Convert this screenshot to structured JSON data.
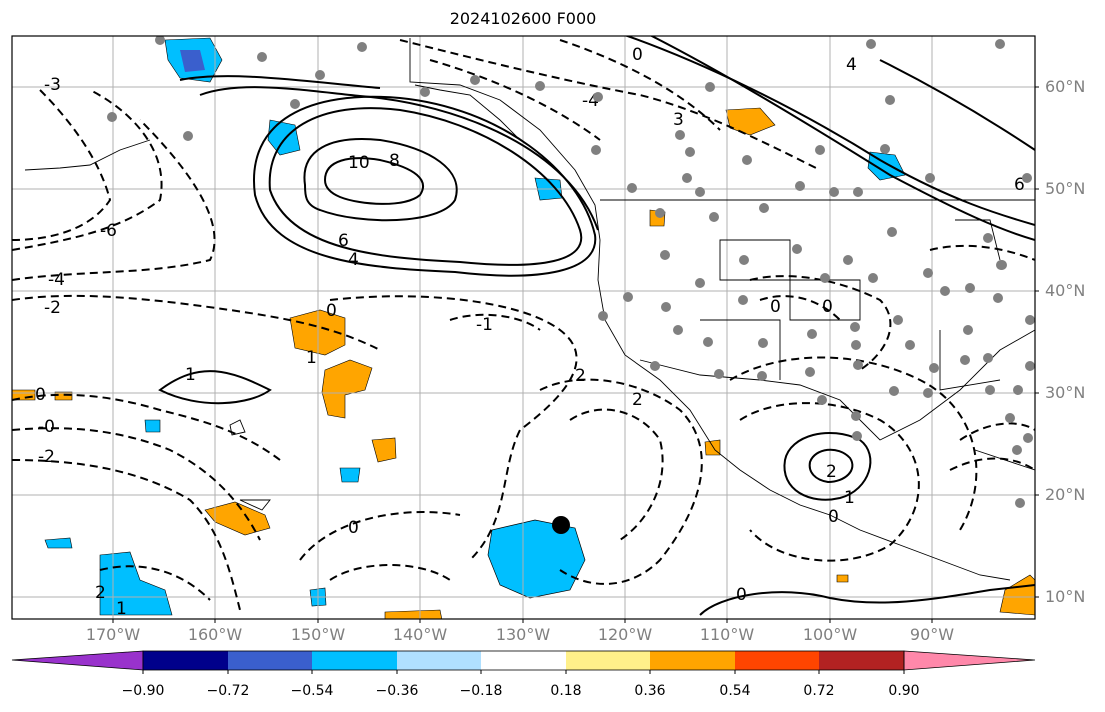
{
  "title": "2024102600 F000",
  "lat_labels": [
    "60°N",
    "50°N",
    "40°N",
    "30°N",
    "20°N",
    "10°N"
  ],
  "lon_labels": [
    "170°W",
    "160°W",
    "150°W",
    "140°W",
    "130°W",
    "120°W",
    "110°W",
    "100°W",
    "90°W"
  ],
  "colorbar": {
    "ticks": [
      "−0.90",
      "−0.72",
      "−0.54",
      "−0.36",
      "−0.18",
      "0.18",
      "0.36",
      "0.54",
      "0.72",
      "0.90"
    ],
    "colors": [
      "#9932cc",
      "#00008b",
      "#3a5fcd",
      "#00bfff",
      "#b0e0ff",
      "#ffffff",
      "#fff08a",
      "#ffa500",
      "#ff4500",
      "#b22222",
      "#ff88aa"
    ]
  },
  "contour_labels": [
    "10",
    "8",
    "6",
    "4",
    "-4",
    "-3",
    "-2",
    "-1",
    "0",
    "1",
    "2",
    "3",
    "-6",
    "6"
  ],
  "marker": {
    "label": "storm-position"
  }
}
